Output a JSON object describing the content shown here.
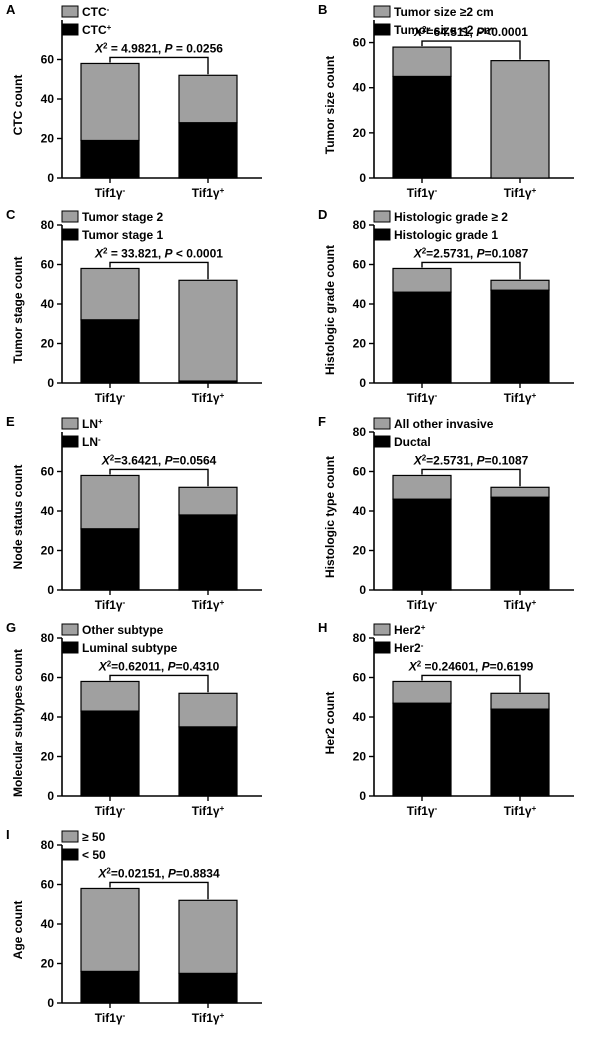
{
  "chart_data": [
    {
      "panel": "A",
      "type": "bar",
      "stacked": true,
      "ylabel": "CTC count",
      "ylim": [
        0,
        80
      ],
      "yticks": [
        0,
        20,
        40,
        60
      ],
      "categories": [
        "Tif1γ-",
        "Tif1γ+"
      ],
      "legend": [
        "CTC-",
        "CTC+"
      ],
      "series": [
        {
          "name": "CTC+",
          "color": "#000000",
          "values": [
            19,
            28
          ]
        },
        {
          "name": "CTC-",
          "color": "#a0a0a0",
          "values": [
            39,
            24
          ]
        }
      ],
      "totals": [
        58,
        52
      ],
      "annotation": {
        "chi_label": "X2",
        "chi_value": " = 4.9821,",
        "p_label": "P",
        "p_value": " = 0.0256"
      }
    },
    {
      "panel": "B",
      "type": "bar",
      "stacked": true,
      "ylabel": "Tumor size count",
      "ylim": [
        0,
        70
      ],
      "yticks": [
        0,
        20,
        40,
        60
      ],
      "categories": [
        "Tif1γ-",
        "Tif1γ+"
      ],
      "legend": [
        "Tumor size ≥2 cm",
        "Tumor size <2 cm"
      ],
      "series": [
        {
          "name": "Tumor size <2 cm",
          "color": "#000000",
          "values": [
            45,
            0
          ]
        },
        {
          "name": "Tumor size ≥2 cm",
          "color": "#a0a0a0",
          "values": [
            13,
            52
          ]
        }
      ],
      "totals": [
        58,
        52
      ],
      "annotation": {
        "chi_label": "X2",
        "chi_value": "=64.511,",
        "p_label": "P",
        "p_value": "<0.0001"
      }
    },
    {
      "panel": "C",
      "type": "bar",
      "stacked": true,
      "ylabel": "Tumor stage count",
      "ylim": [
        0,
        80
      ],
      "yticks": [
        0,
        20,
        40,
        60,
        80
      ],
      "categories": [
        "Tif1γ-",
        "Tif1γ+"
      ],
      "legend": [
        "Tumor stage 2",
        "Tumor stage 1"
      ],
      "series": [
        {
          "name": "Tumor stage 1",
          "color": "#000000",
          "values": [
            32,
            1
          ]
        },
        {
          "name": "Tumor stage 2",
          "color": "#a0a0a0",
          "values": [
            26,
            51
          ]
        }
      ],
      "totals": [
        58,
        52
      ],
      "annotation": {
        "chi_label": "X2",
        "chi_value": " = 33.821,",
        "p_label": "P",
        "p_value": " < 0.0001"
      }
    },
    {
      "panel": "D",
      "type": "bar",
      "stacked": true,
      "ylabel": "Histologic grade count",
      "ylim": [
        0,
        80
      ],
      "yticks": [
        0,
        20,
        40,
        60,
        80
      ],
      "categories": [
        "Tif1γ-",
        "Tif1γ+"
      ],
      "legend": [
        "Histologic grade ≥ 2",
        "Histologic grade 1"
      ],
      "series": [
        {
          "name": "Histologic grade 1",
          "color": "#000000",
          "values": [
            46,
            47
          ]
        },
        {
          "name": "Histologic grade ≥ 2",
          "color": "#a0a0a0",
          "values": [
            12,
            5
          ]
        }
      ],
      "totals": [
        58,
        52
      ],
      "annotation": {
        "chi_label": "X2",
        "chi_value": "=2.5731,",
        "p_label": "P",
        "p_value": "=0.1087"
      }
    },
    {
      "panel": "E",
      "type": "bar",
      "stacked": true,
      "ylabel": "Node status count",
      "ylim": [
        0,
        80
      ],
      "yticks": [
        0,
        20,
        40,
        60
      ],
      "categories": [
        "Tif1γ-",
        "Tif1γ+"
      ],
      "legend": [
        "LN+",
        "LN-"
      ],
      "series": [
        {
          "name": "LN-",
          "color": "#000000",
          "values": [
            31,
            38
          ]
        },
        {
          "name": "LN+",
          "color": "#a0a0a0",
          "values": [
            27,
            14
          ]
        }
      ],
      "totals": [
        58,
        52
      ],
      "annotation": {
        "chi_label": "X2",
        "chi_value": "=3.6421,",
        "p_label": "P",
        "p_value": "=0.0564"
      }
    },
    {
      "panel": "F",
      "type": "bar",
      "stacked": true,
      "ylabel": "Histologic type count",
      "ylim": [
        0,
        80
      ],
      "yticks": [
        0,
        20,
        40,
        60,
        80
      ],
      "categories": [
        "Tif1γ-",
        "Tif1γ+"
      ],
      "legend": [
        "All other invasive",
        "Ductal"
      ],
      "series": [
        {
          "name": "Ductal",
          "color": "#000000",
          "values": [
            46,
            47
          ]
        },
        {
          "name": "All other invasive",
          "color": "#a0a0a0",
          "values": [
            12,
            5
          ]
        }
      ],
      "totals": [
        58,
        52
      ],
      "annotation": {
        "chi_label": "X2",
        "chi_value": "=2.5731,",
        "p_label": "P",
        "p_value": "=0.1087"
      }
    },
    {
      "panel": "G",
      "type": "bar",
      "stacked": true,
      "ylabel": "Molecular subtypes count",
      "ylim": [
        0,
        80
      ],
      "yticks": [
        0,
        20,
        40,
        60,
        80
      ],
      "categories": [
        "Tif1γ-",
        "Tif1γ+"
      ],
      "legend": [
        "Other subtype",
        "Luminal subtype"
      ],
      "series": [
        {
          "name": "Luminal subtype",
          "color": "#000000",
          "values": [
            43,
            35
          ]
        },
        {
          "name": "Other subtype",
          "color": "#a0a0a0",
          "values": [
            15,
            17
          ]
        }
      ],
      "totals": [
        58,
        52
      ],
      "annotation": {
        "chi_label": "X2",
        "chi_value": "=0.62011,",
        "p_label": "P",
        "p_value": "=0.4310"
      }
    },
    {
      "panel": "H",
      "type": "bar",
      "stacked": true,
      "ylabel": "Her2 count",
      "ylim": [
        0,
        80
      ],
      "yticks": [
        0,
        20,
        40,
        60,
        80
      ],
      "categories": [
        "Tif1γ-",
        "Tif1γ+"
      ],
      "legend": [
        "Her2+",
        "Her2-"
      ],
      "series": [
        {
          "name": "Her2-",
          "color": "#000000",
          "values": [
            47,
            44
          ]
        },
        {
          "name": "Her2+",
          "color": "#a0a0a0",
          "values": [
            11,
            8
          ]
        }
      ],
      "totals": [
        58,
        52
      ],
      "annotation": {
        "chi_label": "X2",
        "chi_value": " =0.24601,",
        "p_label": "P",
        "p_value": "=0.6199"
      }
    },
    {
      "panel": "I",
      "type": "bar",
      "stacked": true,
      "ylabel": "Age count",
      "ylim": [
        0,
        80
      ],
      "yticks": [
        0,
        20,
        40,
        60,
        80
      ],
      "categories": [
        "Tif1γ-",
        "Tif1γ+"
      ],
      "legend": [
        "≥ 50",
        "< 50"
      ],
      "series": [
        {
          "name": "< 50",
          "color": "#000000",
          "values": [
            16,
            15
          ]
        },
        {
          "name": "≥ 50",
          "color": "#a0a0a0",
          "values": [
            42,
            37
          ]
        }
      ],
      "totals": [
        58,
        52
      ],
      "annotation": {
        "chi_label": "X2",
        "chi_value": "=0.02151,",
        "p_label": "P",
        "p_value": "=0.8834"
      }
    }
  ]
}
